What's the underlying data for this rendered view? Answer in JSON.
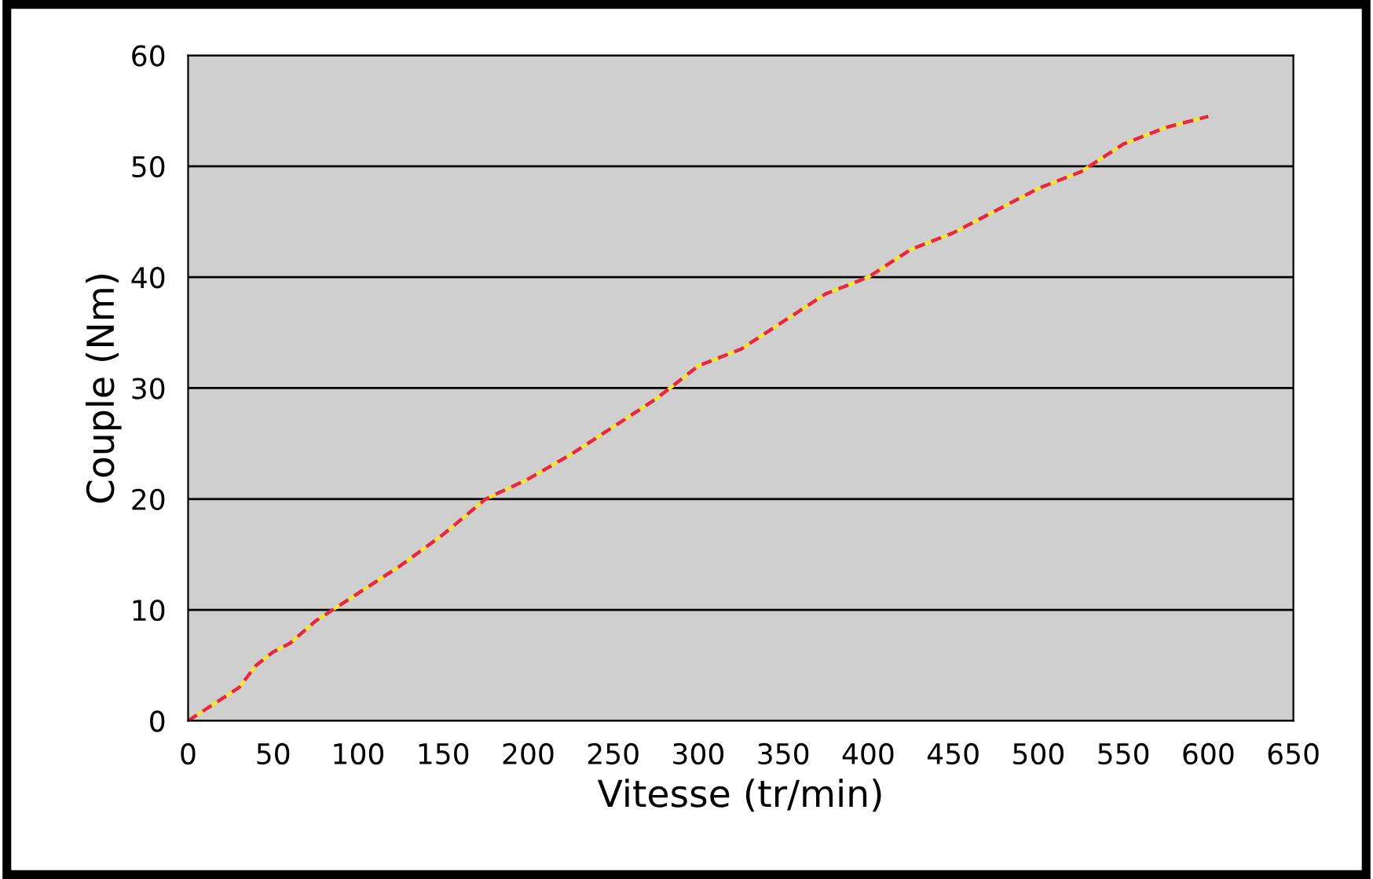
{
  "chart_data": {
    "type": "line",
    "xlabel": "Vitesse (tr/min)",
    "ylabel": "Couple (Nm)",
    "x": [
      0,
      25,
      30,
      40,
      50,
      60,
      75,
      100,
      125,
      150,
      175,
      200,
      225,
      250,
      275,
      300,
      325,
      350,
      375,
      400,
      425,
      450,
      475,
      500,
      525,
      550,
      575,
      600
    ],
    "series": [
      {
        "color": "#e8283c",
        "values": [
          0,
          2.5,
          3,
          5,
          6.2,
          7,
          9,
          11.5,
          14,
          16.8,
          20,
          21.8,
          24,
          26.5,
          29,
          32,
          33.5,
          36,
          38.5,
          40,
          42.5,
          44,
          46,
          48,
          49.5,
          52,
          53.5,
          54.5
        ]
      }
    ],
    "xlim": [
      0,
      650
    ],
    "ylim": [
      0,
      60
    ],
    "xticks": [
      0,
      50,
      100,
      150,
      200,
      250,
      300,
      350,
      400,
      450,
      500,
      550,
      600,
      650
    ],
    "yticks": [
      0,
      10,
      20,
      30,
      40,
      50,
      60
    ],
    "grid": "y",
    "line_style": "dashed",
    "marker": "none"
  }
}
